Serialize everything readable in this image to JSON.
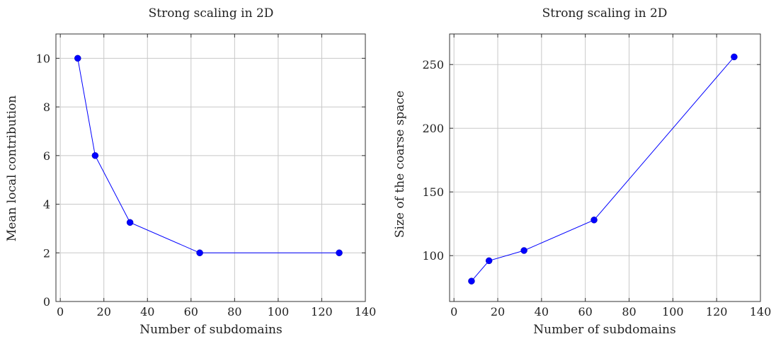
{
  "chart_data": [
    {
      "type": "line",
      "title": "Strong scaling in 2D",
      "xlabel": "Number of subdomains",
      "ylabel": "Mean local contribution",
      "xlim": [
        -2,
        140
      ],
      "ylim": [
        0,
        11
      ],
      "xticks": [
        "0",
        "20",
        "40",
        "60",
        "80",
        "100",
        "120",
        "140"
      ],
      "yticks": [
        "0",
        "2",
        "4",
        "6",
        "8",
        "10"
      ],
      "grid": true,
      "color": "#0000ff",
      "series": [
        {
          "x": [
            8,
            16,
            32,
            64,
            128
          ],
          "y": [
            10,
            6,
            3.25,
            2,
            2
          ]
        }
      ]
    },
    {
      "type": "line",
      "title": "Strong scaling in 2D",
      "xlabel": "Number of subdomains",
      "ylabel": "Size of the coarse space",
      "xlim": [
        -2,
        140
      ],
      "ylim": [
        64,
        274
      ],
      "xticks": [
        "0",
        "20",
        "40",
        "60",
        "80",
        "100",
        "120",
        "140"
      ],
      "yticks": [
        "100",
        "150",
        "200",
        "250"
      ],
      "grid": true,
      "color": "#0000ff",
      "series": [
        {
          "x": [
            8,
            16,
            32,
            64,
            128
          ],
          "y": [
            80,
            96,
            104,
            128,
            256
          ]
        }
      ]
    }
  ]
}
